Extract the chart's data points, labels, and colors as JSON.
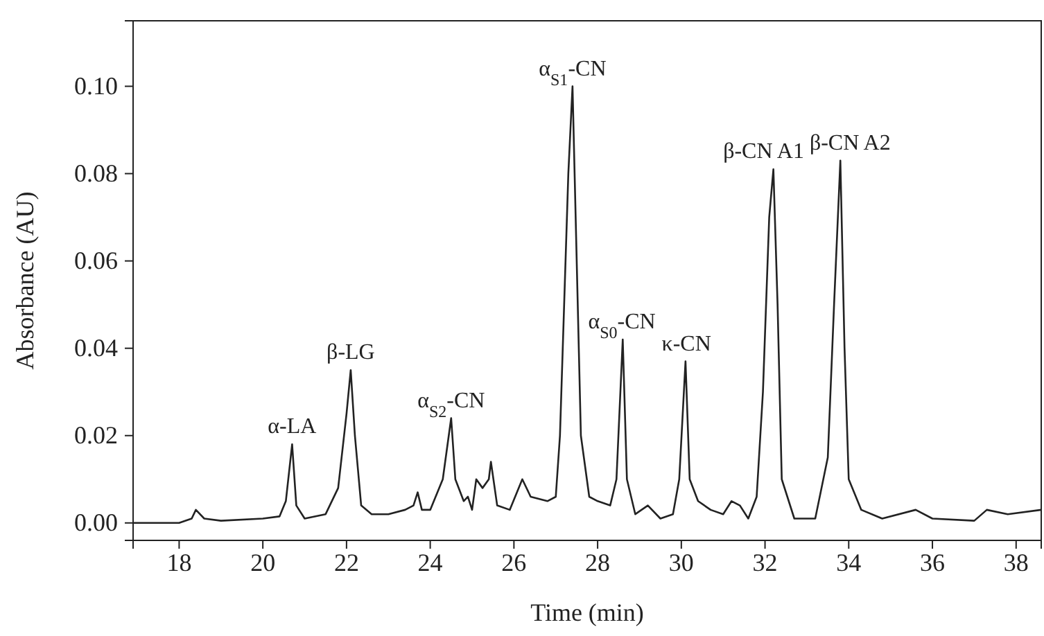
{
  "chart_data": {
    "type": "line",
    "xlabel": "Time (min)",
    "ylabel": "Absorbance (AU)",
    "xlim": [
      16.9,
      38.6
    ],
    "ylim": [
      -0.004,
      0.115
    ],
    "xticks": [
      18,
      20,
      22,
      24,
      26,
      28,
      30,
      32,
      34,
      36,
      38
    ],
    "yticks": [
      {
        "value": 0,
        "label": "0.00"
      },
      {
        "value": 0.02,
        "label": "0.02"
      },
      {
        "value": 0.04,
        "label": "0.04"
      },
      {
        "value": 0.06,
        "label": "0.06"
      },
      {
        "value": 0.08,
        "label": "0.08"
      },
      {
        "value": 0.1,
        "label": "0.10"
      }
    ],
    "grid": false,
    "marker": "none",
    "line_style": "solid",
    "series": [
      {
        "color": "#222222",
        "x": [
          16.9,
          18.0,
          18.3,
          18.4,
          18.6,
          19.0,
          20.0,
          20.4,
          20.55,
          20.7,
          20.8,
          21.0,
          21.5,
          21.8,
          22.0,
          22.1,
          22.2,
          22.35,
          22.6,
          23.0,
          23.4,
          23.6,
          23.7,
          23.8,
          24.0,
          24.3,
          24.5,
          24.6,
          24.8,
          24.9,
          25.0,
          25.1,
          25.25,
          25.4,
          25.45,
          25.6,
          25.9,
          26.2,
          26.4,
          26.8,
          27.0,
          27.1,
          27.2,
          27.3,
          27.4,
          27.5,
          27.6,
          27.8,
          28.0,
          28.3,
          28.45,
          28.6,
          28.7,
          28.9,
          29.2,
          29.5,
          29.8,
          29.95,
          30.1,
          30.2,
          30.4,
          30.7,
          31.0,
          31.2,
          31.4,
          31.6,
          31.8,
          31.95,
          32.1,
          32.2,
          32.3,
          32.4,
          32.7,
          33.2,
          33.5,
          33.65,
          33.8,
          33.9,
          34.0,
          34.3,
          34.8,
          35.6,
          36.0,
          37.0,
          37.3,
          37.8,
          38.6
        ],
        "values": [
          0.0,
          0.0,
          0.001,
          0.003,
          0.001,
          0.0005,
          0.001,
          0.0015,
          0.005,
          0.018,
          0.004,
          0.001,
          0.002,
          0.008,
          0.025,
          0.035,
          0.02,
          0.004,
          0.002,
          0.002,
          0.003,
          0.004,
          0.007,
          0.003,
          0.003,
          0.01,
          0.024,
          0.01,
          0.005,
          0.006,
          0.003,
          0.01,
          0.008,
          0.01,
          0.014,
          0.004,
          0.003,
          0.01,
          0.006,
          0.005,
          0.006,
          0.02,
          0.05,
          0.08,
          0.1,
          0.06,
          0.02,
          0.006,
          0.005,
          0.004,
          0.01,
          0.042,
          0.01,
          0.002,
          0.004,
          0.001,
          0.002,
          0.01,
          0.037,
          0.01,
          0.005,
          0.003,
          0.002,
          0.005,
          0.004,
          0.001,
          0.006,
          0.03,
          0.07,
          0.081,
          0.05,
          0.01,
          0.001,
          0.001,
          0.015,
          0.05,
          0.083,
          0.04,
          0.01,
          0.003,
          0.001,
          0.003,
          0.001,
          0.0005,
          0.003,
          0.002,
          0.003
        ]
      }
    ],
    "annotations": [
      {
        "text": "α-LA",
        "x": 20.7,
        "y": 0.018
      },
      {
        "text": "β-LG",
        "x": 22.1,
        "y": 0.035
      },
      {
        "text": "α$_{S2}$-CN",
        "x": 24.5,
        "y": 0.024
      },
      {
        "text": "α$_{S1}$-CN",
        "x": 27.4,
        "y": 0.1
      },
      {
        "text": "α$_{S0}$-CN",
        "x": 28.6,
        "y": 0.042
      },
      {
        "text": "κ-CN",
        "x": 30.1,
        "y": 0.037
      },
      {
        "text": "β-CN A1",
        "x": 32.2,
        "y": 0.081
      },
      {
        "text": "β-CN A2",
        "x": 33.8,
        "y": 0.083
      }
    ]
  }
}
